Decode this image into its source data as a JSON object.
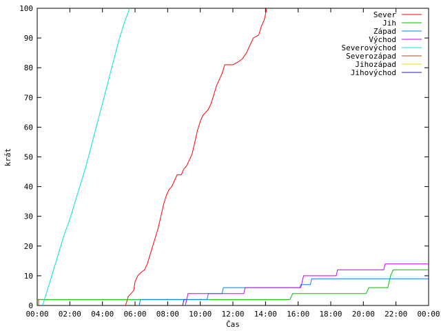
{
  "chart_data": {
    "type": "line",
    "xlabel": "Čas",
    "ylabel": "krát",
    "xlim": [
      "00:00",
      "24:00"
    ],
    "ylim": [
      0,
      100
    ],
    "y_ticks": [
      0,
      10,
      20,
      30,
      40,
      50,
      60,
      70,
      80,
      90,
      100
    ],
    "x_ticks": [
      "00:00",
      "02:00",
      "04:00",
      "06:00",
      "08:00",
      "10:00",
      "12:00",
      "14:00",
      "16:00",
      "18:00",
      "20:00",
      "22:00",
      "00:00"
    ],
    "x_tick_values": [
      "00:00",
      "02:00",
      "04:00",
      "06:00",
      "08:00",
      "10:00",
      "12:00",
      "14:00",
      "16:00",
      "18:00",
      "20:00",
      "22:00",
      "24:00"
    ],
    "grid": false,
    "legend_position": "top-right",
    "series": [
      {
        "name": "Sever",
        "color": "#ff0000",
        "points": [
          [
            "05:25",
            0
          ],
          [
            "05:35",
            3
          ],
          [
            "05:45",
            4
          ],
          [
            "05:55",
            5
          ],
          [
            "06:00",
            8
          ],
          [
            "06:10",
            10
          ],
          [
            "06:20",
            11
          ],
          [
            "06:35",
            12
          ],
          [
            "06:45",
            14
          ],
          [
            "06:55",
            17
          ],
          [
            "07:05",
            20
          ],
          [
            "07:15",
            23
          ],
          [
            "07:25",
            26
          ],
          [
            "07:35",
            30
          ],
          [
            "07:45",
            34
          ],
          [
            "07:55",
            37
          ],
          [
            "08:05",
            39
          ],
          [
            "08:15",
            40
          ],
          [
            "08:25",
            42
          ],
          [
            "08:35",
            44
          ],
          [
            "08:50",
            44
          ],
          [
            "09:00",
            46
          ],
          [
            "09:10",
            47
          ],
          [
            "09:20",
            49
          ],
          [
            "09:30",
            51
          ],
          [
            "09:40",
            55
          ],
          [
            "09:50",
            59
          ],
          [
            "10:00",
            62
          ],
          [
            "10:10",
            64
          ],
          [
            "10:20",
            65
          ],
          [
            "10:30",
            66
          ],
          [
            "10:40",
            68
          ],
          [
            "10:50",
            71
          ],
          [
            "11:00",
            74
          ],
          [
            "11:10",
            76
          ],
          [
            "11:20",
            78
          ],
          [
            "11:30",
            81
          ],
          [
            "12:00",
            81
          ],
          [
            "12:20",
            82
          ],
          [
            "12:35",
            83
          ],
          [
            "12:50",
            85
          ],
          [
            "13:05",
            88
          ],
          [
            "13:15",
            90
          ],
          [
            "13:35",
            91
          ],
          [
            "13:45",
            94
          ],
          [
            "13:55",
            96
          ],
          [
            "14:05",
            100
          ]
        ]
      },
      {
        "name": "Jih",
        "color": "#00c000",
        "points": [
          [
            "00:00",
            2
          ],
          [
            "15:30",
            2
          ],
          [
            "15:40",
            4
          ],
          [
            "20:10",
            4
          ],
          [
            "20:20",
            6
          ],
          [
            "21:30",
            6
          ],
          [
            "21:40",
            10
          ],
          [
            "21:50",
            12
          ],
          [
            "24:00",
            12
          ]
        ]
      },
      {
        "name": "Západ",
        "color": "#0080ff",
        "points": [
          [
            "06:15",
            0
          ],
          [
            "06:20",
            2
          ],
          [
            "10:25",
            2
          ],
          [
            "10:30",
            4
          ],
          [
            "11:20",
            4
          ],
          [
            "11:25",
            6
          ],
          [
            "16:05",
            6
          ],
          [
            "16:10",
            7
          ],
          [
            "16:45",
            7
          ],
          [
            "16:50",
            9
          ],
          [
            "24:00",
            9
          ]
        ]
      },
      {
        "name": "Východ",
        "color": "#c000ff",
        "points": [
          [
            "09:05",
            0
          ],
          [
            "09:10",
            2
          ],
          [
            "09:15",
            4
          ],
          [
            "12:40",
            4
          ],
          [
            "12:45",
            6
          ],
          [
            "16:10",
            6
          ],
          [
            "16:15",
            8
          ],
          [
            "16:20",
            10
          ],
          [
            "18:20",
            10
          ],
          [
            "18:25",
            12
          ],
          [
            "21:15",
            12
          ],
          [
            "21:20",
            14
          ],
          [
            "24:00",
            14
          ]
        ]
      },
      {
        "name": "Severovýchod",
        "color": "#00e0e0",
        "points": [
          [
            "00:20",
            0
          ],
          [
            "00:40",
            6
          ],
          [
            "01:00",
            12
          ],
          [
            "01:20",
            18
          ],
          [
            "01:40",
            24
          ],
          [
            "02:00",
            29
          ],
          [
            "02:20",
            35
          ],
          [
            "02:40",
            41
          ],
          [
            "03:00",
            47
          ],
          [
            "03:20",
            54
          ],
          [
            "03:40",
            61
          ],
          [
            "04:00",
            68
          ],
          [
            "04:20",
            75
          ],
          [
            "04:40",
            82
          ],
          [
            "05:00",
            89
          ],
          [
            "05:20",
            95
          ],
          [
            "05:40",
            100
          ]
        ]
      },
      {
        "name": "Severozápad",
        "color": "#a05020",
        "points": [
          [
            "00:05",
            0
          ],
          [
            "00:05",
            2
          ],
          [
            "00:10",
            2
          ]
        ]
      },
      {
        "name": "Jihozápad",
        "color": "#e0e000",
        "points": []
      },
      {
        "name": "Jihovýchod",
        "color": "#2020b0",
        "points": [
          [
            "08:55",
            0
          ],
          [
            "09:00",
            2
          ],
          [
            "09:05",
            2
          ]
        ]
      }
    ]
  }
}
